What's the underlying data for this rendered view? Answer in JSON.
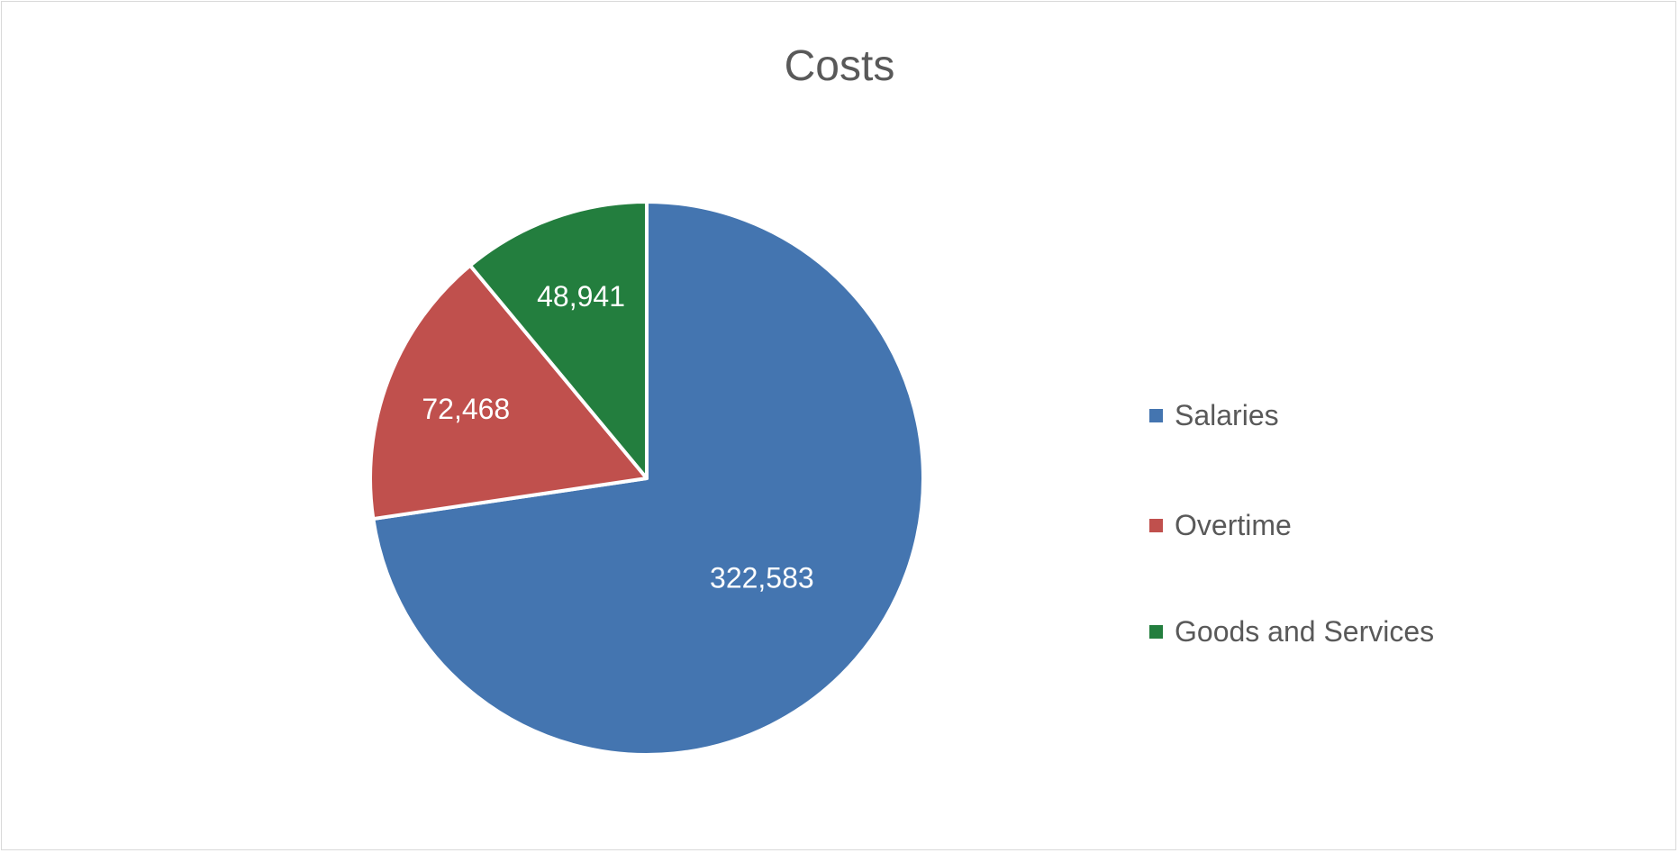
{
  "chart_data": {
    "type": "pie",
    "title": "Costs",
    "categories": [
      "Salaries",
      "Overtime",
      "Goods and Services"
    ],
    "values": [
      322583,
      72468,
      48941
    ],
    "data_labels": [
      "322,583",
      "72,468",
      "48,941"
    ],
    "colors": [
      "#4475b0",
      "#c0504d",
      "#237e3e"
    ],
    "legend_position": "right",
    "start_angle_deg": 0,
    "direction": "clockwise"
  }
}
